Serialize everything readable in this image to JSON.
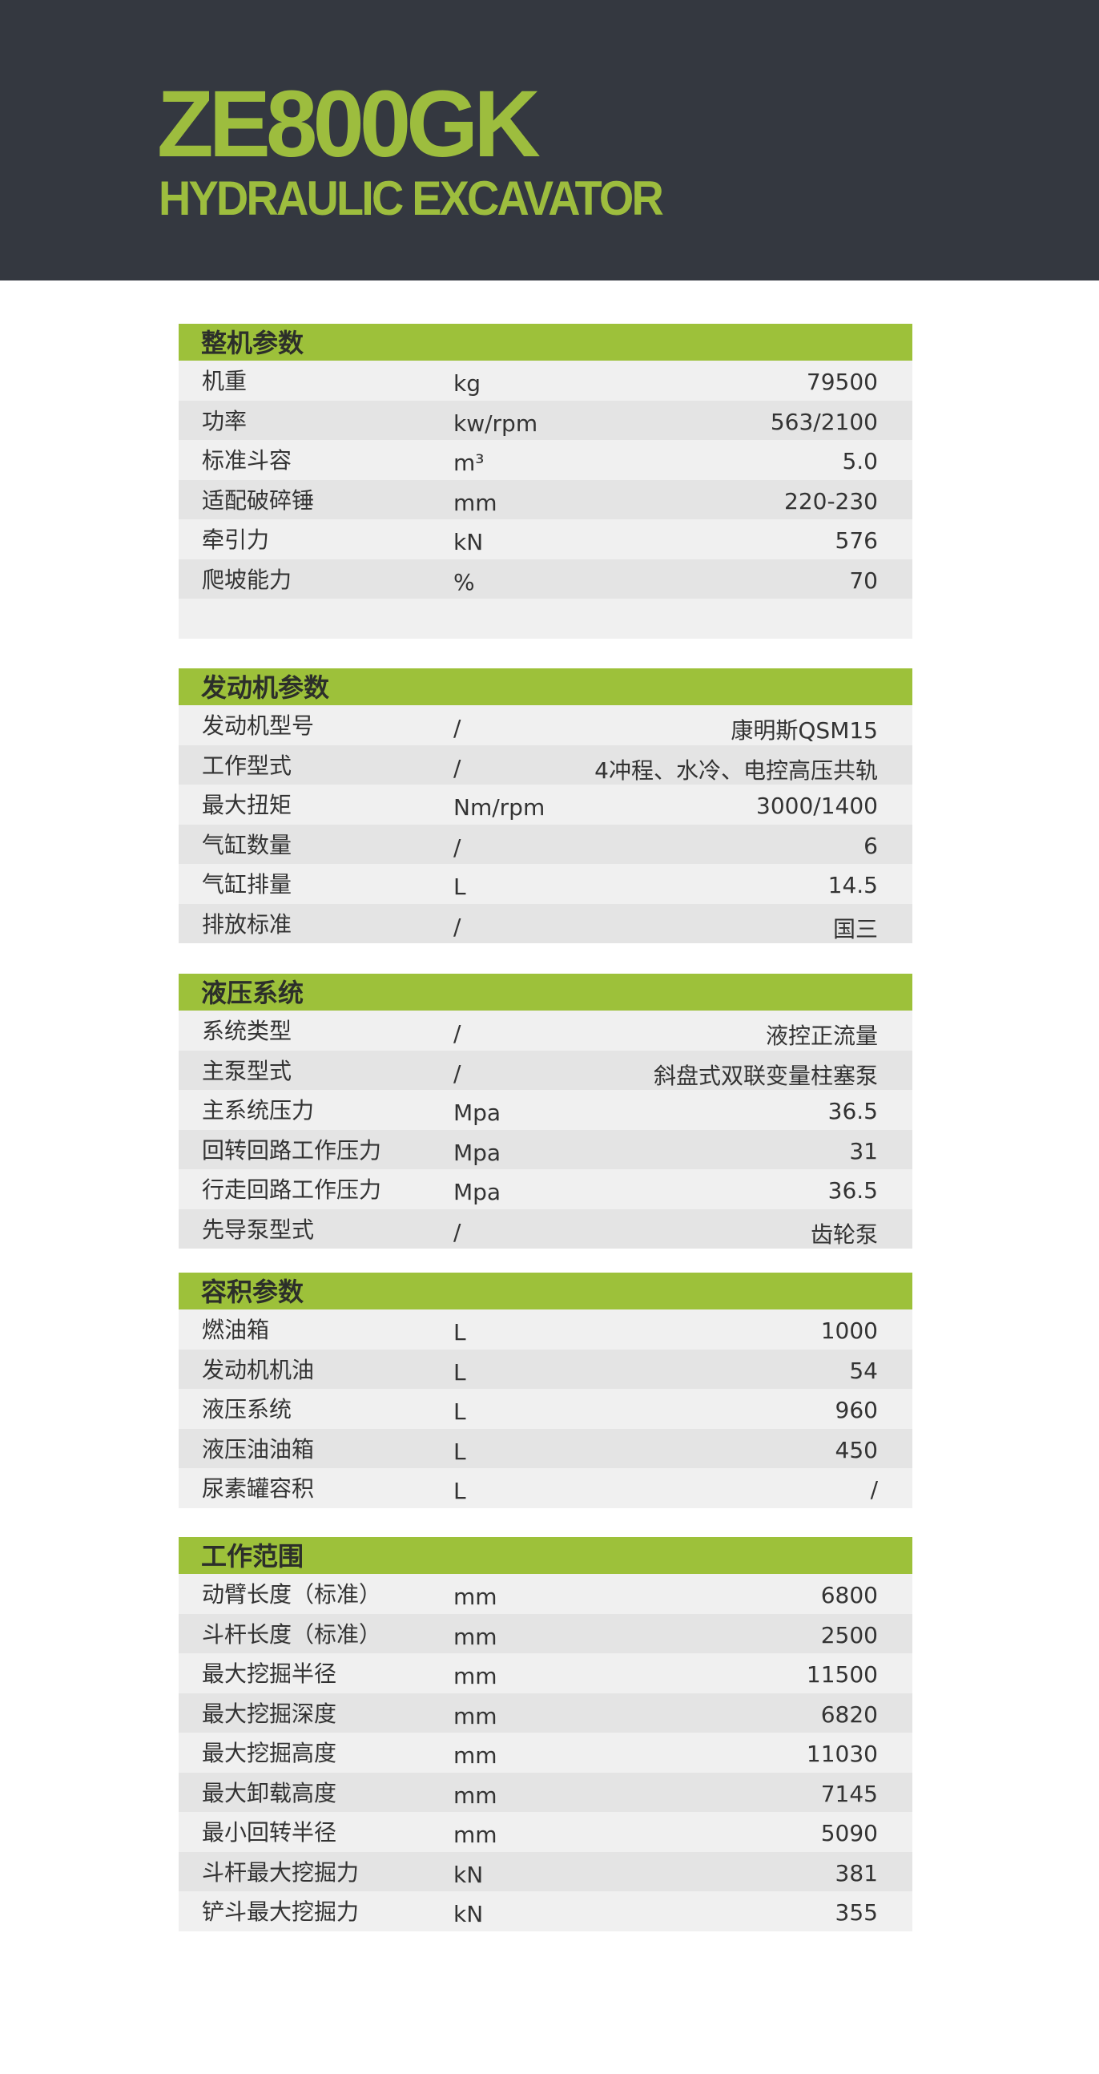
{
  "header": {
    "model": "ZE800GK",
    "subtitle": "HYDRAULIC EXCAVATOR"
  },
  "colors": {
    "band": "#343840",
    "accent": "#9dc13a",
    "title": "#9dbd3e"
  },
  "sections": [
    {
      "title": "整机参数",
      "rows": [
        [
          "机重",
          "kg",
          "79500"
        ],
        [
          "功率",
          "kw/rpm",
          "563/2100"
        ],
        [
          "标准斗容",
          "m³",
          "5.0"
        ],
        [
          "适配破碎锤",
          "mm",
          "220-230"
        ],
        [
          "牵引力",
          "kN",
          "576"
        ],
        [
          "爬坡能力",
          "%",
          "70"
        ],
        [
          "",
          "",
          ""
        ]
      ]
    },
    {
      "title": "发动机参数",
      "rows": [
        [
          "发动机型号",
          "/",
          "康明斯QSM15"
        ],
        [
          "工作型式",
          "/",
          "4冲程、水冷、电控高压共轨"
        ],
        [
          "最大扭矩",
          "Nm/rpm",
          "3000/1400"
        ],
        [
          "气缸数量",
          "/",
          "6"
        ],
        [
          "气缸排量",
          "L",
          "14.5"
        ],
        [
          "排放标准",
          "/",
          "国三"
        ]
      ]
    },
    {
      "title": "液压系统",
      "rows": [
        [
          "系统类型",
          "/",
          "液控正流量"
        ],
        [
          "主泵型式",
          "/",
          "斜盘式双联变量柱塞泵"
        ],
        [
          "主系统压力",
          "Mpa",
          "36.5"
        ],
        [
          "回转回路工作压力",
          "Mpa",
          "31"
        ],
        [
          "行走回路工作压力",
          "Mpa",
          "36.5"
        ],
        [
          "先导泵型式",
          "/",
          "齿轮泵"
        ]
      ]
    },
    {
      "title": "容积参数",
      "rows": [
        [
          "燃油箱",
          "L",
          "1000"
        ],
        [
          "发动机机油",
          "L",
          "54"
        ],
        [
          "液压系统",
          "L",
          "960"
        ],
        [
          "液压油油箱",
          "L",
          "450"
        ],
        [
          "尿素罐容积",
          "L",
          "/"
        ]
      ]
    },
    {
      "title": "工作范围",
      "rows": [
        [
          "动臂长度（标准）",
          "mm",
          "6800"
        ],
        [
          "斗杆长度（标准）",
          "mm",
          "2500"
        ],
        [
          "最大挖掘半径",
          "mm",
          "11500"
        ],
        [
          "最大挖掘深度",
          "mm",
          "6820"
        ],
        [
          "最大挖掘高度",
          "mm",
          "11030"
        ],
        [
          "最大卸载高度",
          "mm",
          "7145"
        ],
        [
          "最小回转半径",
          "mm",
          "5090"
        ],
        [
          "斗杆最大挖掘力",
          "kN",
          "381"
        ],
        [
          "铲斗最大挖掘力",
          "kN",
          "355"
        ]
      ]
    }
  ]
}
